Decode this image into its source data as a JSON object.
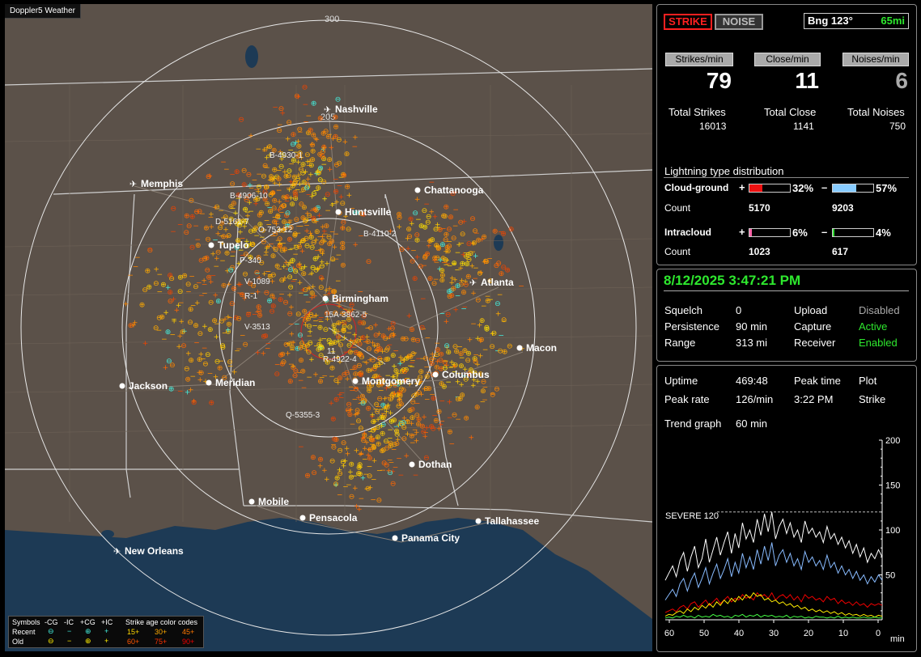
{
  "map": {
    "title": "Doppler5 Weather",
    "ring_labels": [
      "300",
      "205"
    ],
    "cities": [
      {
        "name": "Nashville",
        "airport": true
      },
      {
        "name": "Memphis",
        "airport": true
      },
      {
        "name": "Chattanooga",
        "airport": false
      },
      {
        "name": "Huntsville",
        "airport": false
      },
      {
        "name": "Tupelo",
        "airport": false
      },
      {
        "name": "Atlanta",
        "airport": true
      },
      {
        "name": "Birmingham",
        "airport": false
      },
      {
        "name": "Macon",
        "airport": false
      },
      {
        "name": "Jackson",
        "airport": false
      },
      {
        "name": "Meridian",
        "airport": false
      },
      {
        "name": "Montgomery",
        "airport": false
      },
      {
        "name": "Columbus",
        "airport": false
      },
      {
        "name": "Dothan",
        "airport": false
      },
      {
        "name": "Mobile",
        "airport": false
      },
      {
        "name": "Pensacola",
        "airport": false
      },
      {
        "name": "Tallahassee",
        "airport": false
      },
      {
        "name": "Panama City",
        "airport": false
      },
      {
        "name": "New Orleans",
        "airport": true
      }
    ],
    "cell_labels": [
      "B-4930-1",
      "B-4906-10",
      "D-5161-7",
      "O-753-12",
      "B-4110-2",
      "P-340",
      "V-1089",
      "R-1",
      "15A-3862-5",
      "V-3513",
      "11",
      "R-4922-4",
      "Q-5355-3"
    ]
  },
  "legend": {
    "symbols_label": "Symbols",
    "types": [
      "-CG",
      "-IC",
      "+CG",
      "+IC"
    ],
    "age_label": "Strike age color codes",
    "recent_label": "Recent",
    "old_label": "Old",
    "recent_ages": [
      "15+",
      "30+",
      "45+"
    ],
    "old_ages": [
      "60+",
      "75+",
      "90+"
    ],
    "colors": [
      "#ffd700",
      "#ffaa00",
      "#ff7700",
      "#ff5500",
      "#ff3300",
      "#ee0000"
    ]
  },
  "status": {
    "strike_label": "STRIKE",
    "noise_label": "NOISE",
    "bearing": "Bng 123°",
    "distance": "65mi"
  },
  "rates": {
    "strikes_label": "Strikes/min",
    "strikes_value": "79",
    "close_label": "Close/min",
    "close_value": "11",
    "noises_label": "Noises/min",
    "noises_value": "6",
    "total_strikes_label": "Total Strikes",
    "total_strikes": "16013",
    "total_close_label": "Total Close",
    "total_close": "1141",
    "total_noises_label": "Total Noises",
    "total_noises": "750"
  },
  "distribution": {
    "title": "Lightning type distribution",
    "cg_label": "Cloud-ground",
    "ic_label": "Intracloud",
    "count_label": "Count",
    "plus": "+",
    "minus": "–",
    "cg_pos_pct": "32%",
    "cg_pos_frac": 0.32,
    "cg_pos_color": "#ee1111",
    "cg_neg_pct": "57%",
    "cg_neg_frac": 0.57,
    "cg_neg_color": "#88ccff",
    "cg_pos_count": "5170",
    "cg_neg_count": "9203",
    "ic_pos_pct": "6%",
    "ic_pos_frac": 0.06,
    "ic_pos_color": "#ff66aa",
    "ic_neg_pct": "4%",
    "ic_neg_frac": 0.04,
    "ic_neg_color": "#33dd33",
    "ic_pos_count": "1023",
    "ic_neg_count": "617"
  },
  "system": {
    "datetime": "8/12/2025 3:47:21 PM",
    "squelch_label": "Squelch",
    "squelch": "0",
    "persistence_label": "Persistence",
    "persistence": "90 min",
    "range_label": "Range",
    "range": "313 mi",
    "upload_label": "Upload",
    "upload": "Disabled",
    "capture_label": "Capture",
    "capture": "Active",
    "receiver_label": "Receiver",
    "receiver": "Enabled"
  },
  "trend": {
    "uptime_label": "Uptime",
    "uptime": "469:48",
    "peak_time_label": "Peak time",
    "peak_time": "3:22 PM",
    "plot_label": "Plot",
    "plot": "Strike",
    "peak_rate_label": "Peak rate",
    "peak_rate": "126/min",
    "trend_graph_label": "Trend graph",
    "trend_graph": "60 min",
    "severe_label": "SEVERE 120",
    "x_unit": "min"
  },
  "chart_data": {
    "type": "line",
    "x_ticks": [
      "60",
      "50",
      "40",
      "30",
      "20",
      "10",
      "0"
    ],
    "y_ticks": [
      "50",
      "100",
      "150",
      "200"
    ],
    "ylim": [
      0,
      200
    ],
    "xlim": [
      60,
      0
    ],
    "severe_threshold": 120,
    "series": [
      {
        "color": "#ffffff",
        "values": [
          44,
          52,
          60,
          48,
          66,
          75,
          54,
          70,
          82,
          58,
          68,
          90,
          64,
          78,
          92,
          72,
          86,
          98,
          74,
          96,
          80,
          108,
          90,
          100,
          86,
          112,
          94,
          118,
          98,
          120,
          90,
          104,
          112,
          96,
          108,
          92,
          100,
          86,
          110,
          96,
          102,
          92,
          98,
          86,
          104,
          90,
          96,
          84,
          92,
          80,
          88,
          74,
          84,
          70,
          80,
          64,
          74,
          68,
          78,
          70
        ]
      },
      {
        "color": "#88bbff",
        "values": [
          22,
          28,
          34,
          26,
          40,
          46,
          32,
          44,
          52,
          36,
          46,
          58,
          40,
          52,
          62,
          46,
          56,
          68,
          48,
          64,
          52,
          74,
          58,
          70,
          56,
          78,
          62,
          82,
          66,
          86,
          60,
          72,
          78,
          64,
          74,
          60,
          68,
          56,
          76,
          64,
          70,
          60,
          66,
          56,
          72,
          58,
          64,
          52,
          60,
          50,
          56,
          46,
          54,
          44,
          50,
          40,
          48,
          42,
          50,
          44
        ]
      },
      {
        "color": "#ee0000",
        "values": [
          8,
          10,
          12,
          9,
          14,
          16,
          12,
          18,
          20,
          14,
          18,
          22,
          16,
          20,
          24,
          18,
          22,
          26,
          20,
          24,
          22,
          28,
          24,
          26,
          22,
          30,
          26,
          28,
          24,
          30,
          22,
          26,
          28,
          24,
          28,
          22,
          26,
          20,
          28,
          24,
          26,
          22,
          24,
          20,
          26,
          22,
          24,
          18,
          22,
          18,
          20,
          16,
          20,
          16,
          18,
          14,
          18,
          16,
          18,
          16
        ]
      },
      {
        "color": "#ffee00",
        "values": [
          4,
          6,
          5,
          8,
          10,
          7,
          12,
          9,
          14,
          11,
          16,
          13,
          18,
          14,
          20,
          16,
          22,
          18,
          24,
          20,
          26,
          22,
          28,
          24,
          30,
          26,
          28,
          22,
          24,
          20,
          22,
          18,
          20,
          16,
          18,
          14,
          16,
          12,
          14,
          10,
          12,
          9,
          11,
          8,
          10,
          7,
          9,
          6,
          8,
          5,
          7,
          5,
          6,
          4,
          6,
          4,
          5,
          3,
          5,
          4
        ]
      },
      {
        "color": "#44ff44",
        "values": [
          2,
          3,
          2,
          4,
          3,
          5,
          3,
          4,
          2,
          5,
          3,
          4,
          3,
          6,
          4,
          5,
          3,
          4,
          2,
          5,
          4,
          6,
          3,
          5,
          4,
          6,
          3,
          5,
          4,
          5,
          3,
          4,
          3,
          5,
          2,
          4,
          3,
          4,
          2,
          3,
          2,
          4,
          3,
          3,
          2,
          3,
          2,
          4,
          2,
          3,
          2,
          3,
          2,
          2,
          3,
          2,
          2,
          3,
          2,
          2
        ]
      }
    ]
  }
}
